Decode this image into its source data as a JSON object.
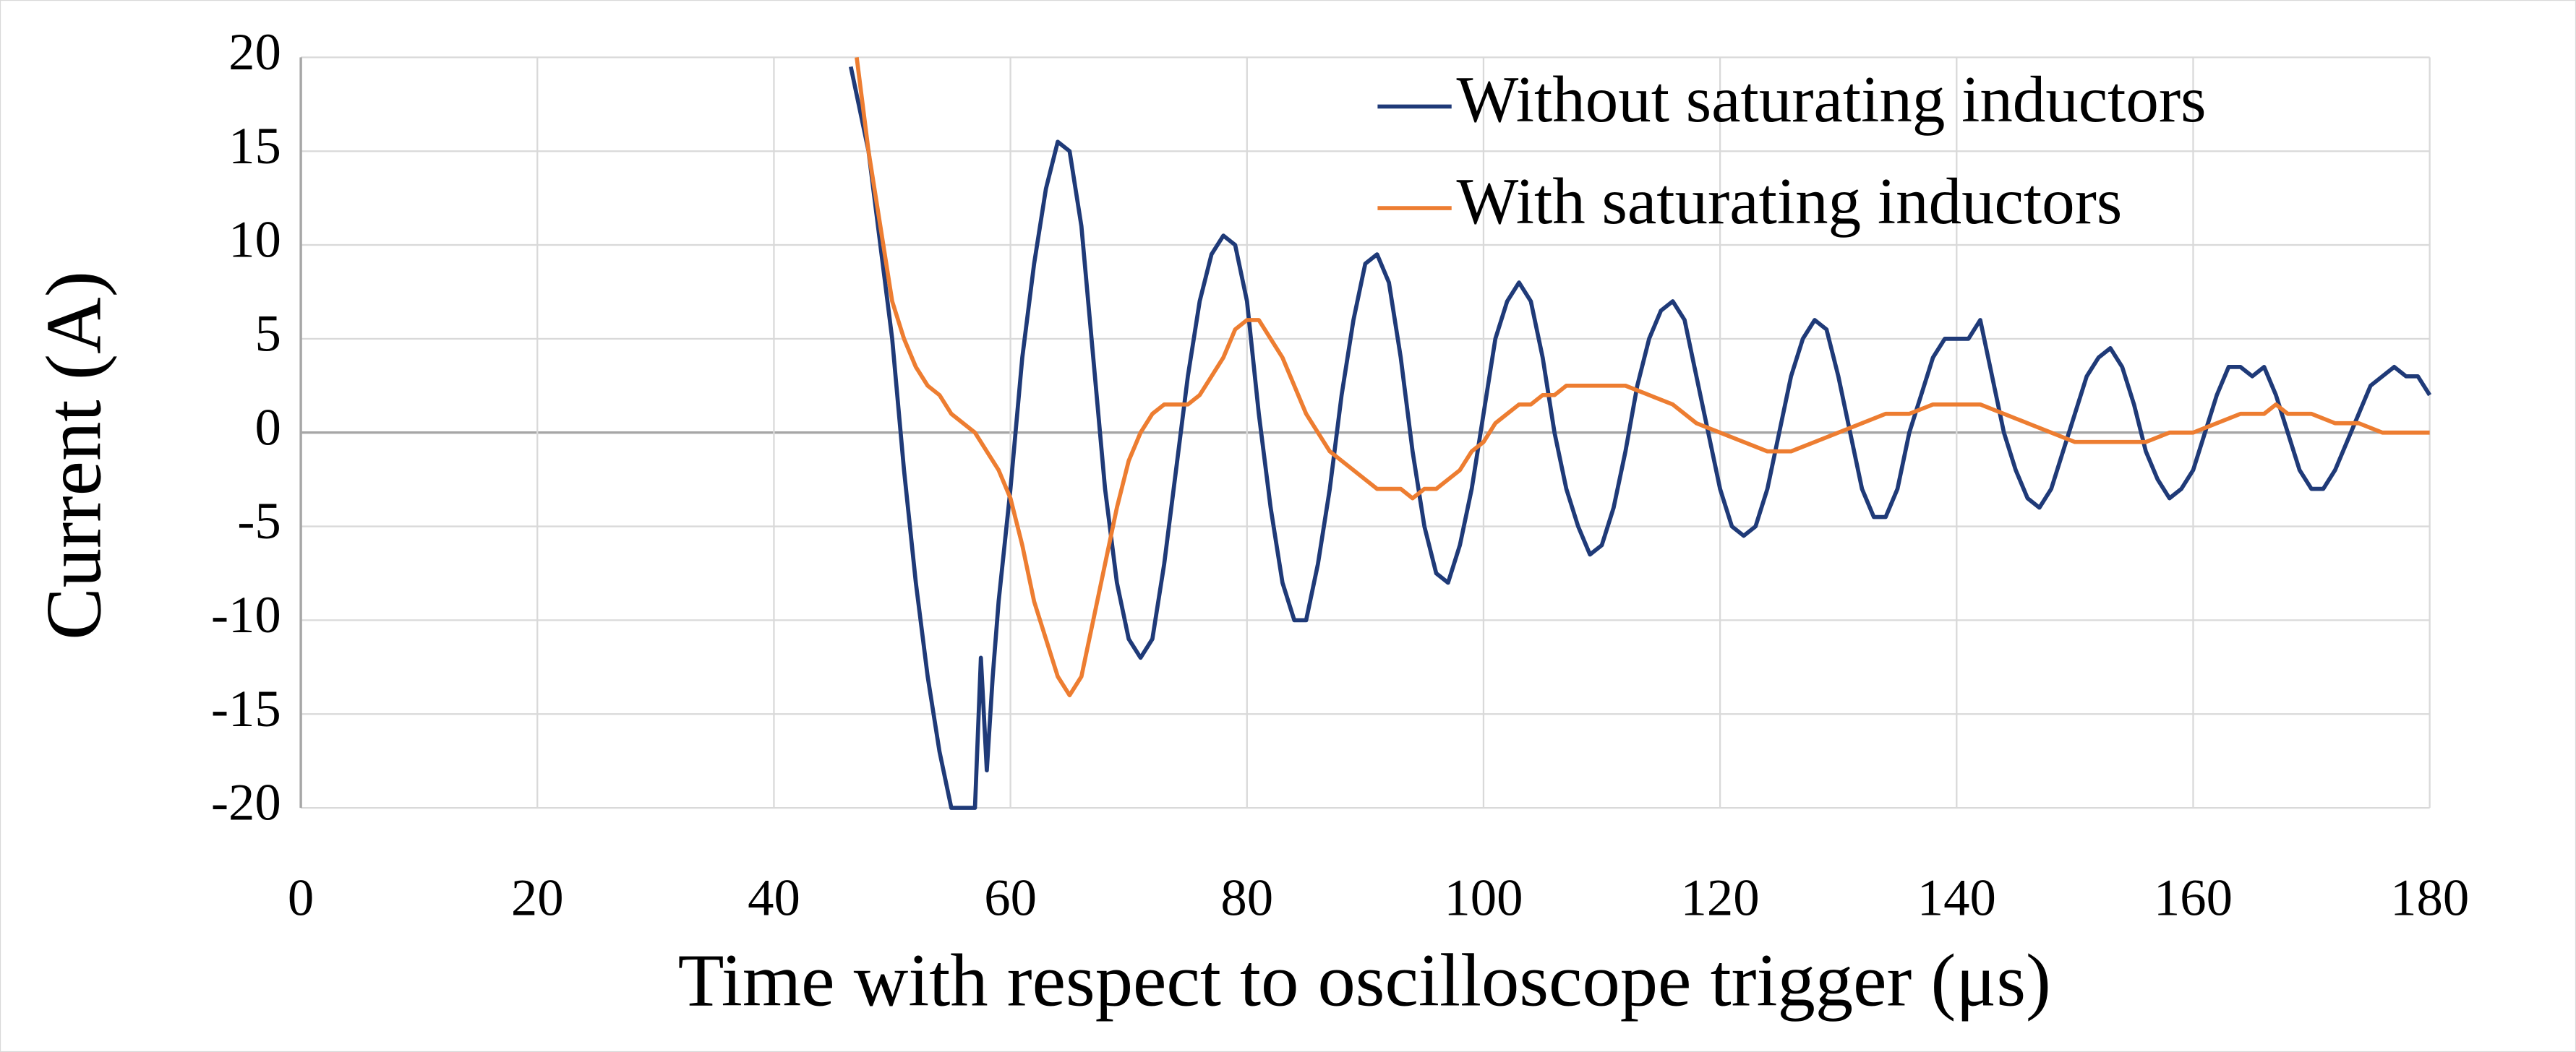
{
  "chart_data": {
    "type": "line",
    "xlabel": "Time with respect to oscilloscope trigger (μs)",
    "ylabel": "Current (A)",
    "xlim": [
      0,
      180
    ],
    "ylim": [
      -20,
      20
    ],
    "xticks": [
      0,
      20,
      40,
      60,
      80,
      100,
      120,
      140,
      160,
      180
    ],
    "yticks": [
      -20,
      -15,
      -10,
      -5,
      0,
      5,
      10,
      15,
      20
    ],
    "grid": true,
    "legend": "upper right",
    "series": [
      {
        "name": "Without saturating inductors",
        "color": "#1f3a78",
        "x": [
          46.5,
          48,
          50,
          51,
          52,
          53,
          54,
          55,
          57,
          57.5,
          58,
          58.5,
          59,
          60,
          61,
          62,
          63,
          64,
          65,
          66,
          67,
          68,
          69,
          70,
          71,
          72,
          73,
          74,
          75,
          76,
          77,
          78,
          79,
          80,
          81,
          82,
          83,
          84,
          85,
          86,
          87,
          88,
          89,
          90,
          91,
          92,
          93,
          94,
          95,
          96,
          97,
          98,
          99,
          100,
          101,
          102,
          103,
          104,
          105,
          106,
          107,
          108,
          109,
          110,
          111,
          112,
          113,
          114,
          115,
          116,
          117,
          118,
          119,
          120,
          121,
          122,
          123,
          124,
          125,
          126,
          127,
          128,
          129,
          130,
          131,
          132,
          133,
          134,
          135,
          136,
          137,
          138,
          139,
          140,
          141,
          142,
          143,
          144,
          145,
          146,
          147,
          148,
          149,
          150,
          151,
          152,
          153,
          154,
          155,
          156,
          157,
          158,
          159,
          160,
          161,
          162,
          163,
          164,
          165,
          166,
          167,
          168,
          169,
          170,
          171,
          172,
          173,
          174,
          175,
          176,
          177,
          178,
          179,
          180
        ],
        "values": [
          19.5,
          15,
          5,
          -2,
          -8,
          -13,
          -17,
          -20,
          -20,
          -12,
          -18,
          -13,
          -9,
          -3,
          4,
          9,
          13,
          15.5,
          15,
          11,
          4,
          -3,
          -8,
          -11,
          -12,
          -11,
          -7,
          -2,
          3,
          7,
          9.5,
          10.5,
          10,
          7,
          1,
          -4,
          -8,
          -10,
          -10,
          -7,
          -3,
          2,
          6,
          9,
          9.5,
          8,
          4,
          -1,
          -5,
          -7.5,
          -8,
          -6,
          -3,
          1,
          5,
          7,
          8,
          7,
          4,
          0,
          -3,
          -5,
          -6.5,
          -6,
          -4,
          -1,
          2.5,
          5,
          6.5,
          7,
          6,
          3,
          0,
          -3,
          -5,
          -5.5,
          -5,
          -3,
          0,
          3,
          5,
          6,
          5.5,
          3,
          0,
          -3,
          -4.5,
          -4.5,
          -3,
          0,
          2,
          4,
          5,
          5,
          5,
          6,
          3,
          0,
          -2,
          -3.5,
          -4,
          -3,
          -1,
          1,
          3,
          4,
          4.5,
          3.5,
          1.5,
          -1,
          -2.5,
          -3.5,
          -3,
          -2,
          0,
          2,
          3.5,
          3.5,
          3,
          3.5,
          2,
          0,
          -2,
          -3,
          -3,
          -2,
          -0.5,
          1,
          2.5,
          3,
          3.5,
          3,
          3,
          2
        ]
      },
      {
        "name": "With saturating inductors",
        "color": "#ed7d31",
        "x": [
          47,
          48,
          49,
          50,
          51,
          52,
          53,
          54,
          55,
          56,
          57,
          58,
          59,
          60,
          61,
          62,
          63,
          64,
          65,
          66,
          67,
          68,
          69,
          70,
          71,
          72,
          73,
          74,
          75,
          76,
          77,
          78,
          79,
          80,
          81,
          82,
          83,
          84,
          85,
          86,
          87,
          88,
          89,
          90,
          91,
          92,
          93,
          94,
          95,
          96,
          97,
          98,
          99,
          100,
          101,
          102,
          103,
          104,
          105,
          106,
          107,
          108,
          110,
          112,
          114,
          116,
          118,
          120,
          122,
          124,
          126,
          128,
          130,
          132,
          134,
          136,
          138,
          140,
          142,
          144,
          146,
          148,
          150,
          152,
          154,
          156,
          158,
          160,
          162,
          164,
          166,
          167,
          168,
          170,
          172,
          174,
          176,
          178,
          180
        ],
        "values": [
          20,
          15,
          11,
          7,
          5,
          3.5,
          2.5,
          2,
          1,
          0.5,
          0,
          -1,
          -2,
          -3.5,
          -6,
          -9,
          -11,
          -13,
          -14,
          -13,
          -10,
          -7,
          -4,
          -1.5,
          0,
          1,
          1.5,
          1.5,
          1.5,
          2,
          3,
          4,
          5.5,
          6,
          6,
          5,
          4,
          2.5,
          1,
          0,
          -1,
          -1.5,
          -2,
          -2.5,
          -3,
          -3,
          -3,
          -3.5,
          -3,
          -3,
          -2.5,
          -2,
          -1,
          -0.5,
          0.5,
          1,
          1.5,
          1.5,
          2,
          2,
          2.5,
          2.5,
          2.5,
          2.5,
          2,
          1.5,
          0.5,
          0,
          -0.5,
          -1,
          -1,
          -0.5,
          0,
          0.5,
          1,
          1,
          1.5,
          1.5,
          1.5,
          1,
          0.5,
          0,
          -0.5,
          -0.5,
          -0.5,
          -0.5,
          0,
          0,
          0.5,
          1,
          1,
          1.5,
          1,
          1,
          0.5,
          0.5,
          0,
          0,
          0
        ]
      }
    ]
  }
}
